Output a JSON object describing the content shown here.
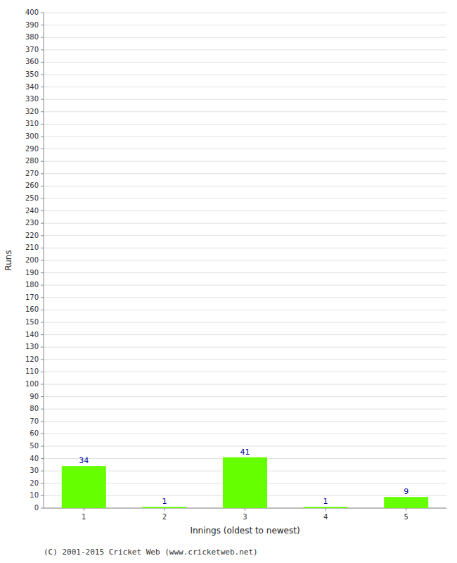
{
  "chart_data": {
    "type": "bar",
    "categories": [
      1,
      2,
      3,
      4,
      5
    ],
    "values": [
      34,
      1,
      41,
      1,
      9
    ],
    "color": "#66ff00",
    "x_label": "Innings (oldest to newest)",
    "y_label": "Runs",
    "ylim": [
      0,
      400
    ],
    "yticks": [
      0,
      10,
      20,
      30,
      40,
      50,
      60,
      70,
      80,
      90,
      100,
      110,
      120,
      130,
      140,
      150,
      160,
      170,
      180,
      190,
      200,
      210,
      220,
      230,
      240,
      250,
      260,
      270,
      280,
      290,
      300,
      310,
      320,
      330,
      340,
      350,
      360,
      370,
      380,
      390,
      400
    ],
    "grid": true,
    "data_labels": true,
    "annotations": [
      "(C) 2001-2015 Cricket Web (www.cricketweb.net)"
    ]
  }
}
